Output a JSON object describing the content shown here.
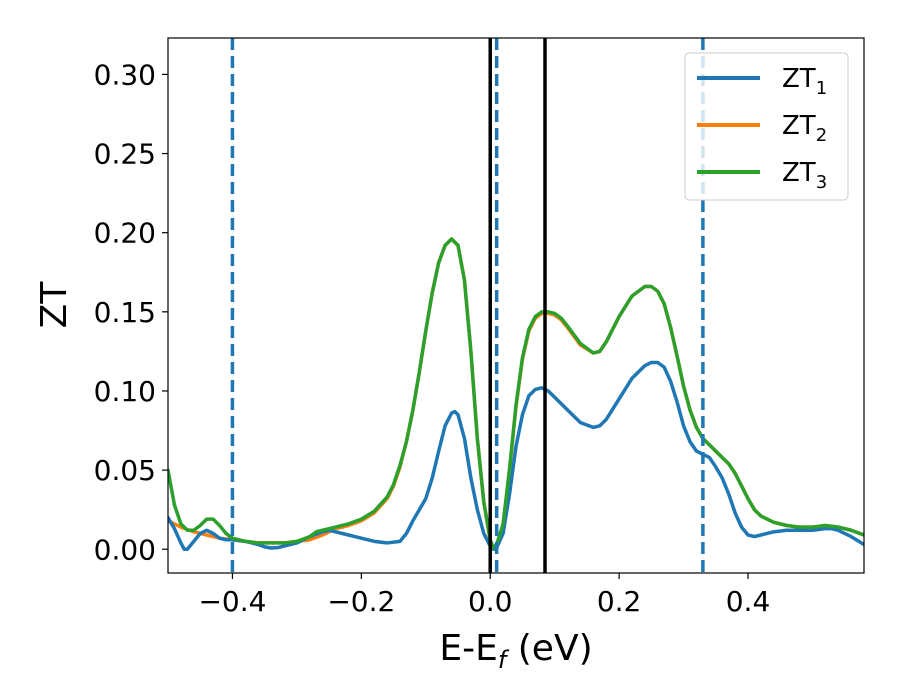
{
  "chart_data": {
    "type": "line",
    "title": "",
    "xlabel": "E-E",
    "xlabel_sub": "f",
    "xlabel_unit": " (eV)",
    "ylabel": "ZT",
    "xlim": [
      -0.5,
      0.58
    ],
    "ylim": [
      -0.015,
      0.323
    ],
    "xticks": [
      -0.4,
      -0.2,
      0.0,
      0.2,
      0.4
    ],
    "xtick_labels": [
      "−0.4",
      "−0.2",
      "0.0",
      "0.2",
      "0.4"
    ],
    "yticks": [
      0.0,
      0.05,
      0.1,
      0.15,
      0.2,
      0.25,
      0.3
    ],
    "ytick_labels": [
      "0.00",
      "0.05",
      "0.10",
      "0.15",
      "0.20",
      "0.25",
      "0.30"
    ],
    "grid": false,
    "legend_position": "top-right",
    "colors": {
      "ZT1": "#1f77b4",
      "ZT2": "#ff7f0e",
      "ZT3": "#2ca02c",
      "vline_solid": "#000000",
      "vline_dashed": "#1f77b4"
    },
    "vlines_solid": [
      0.0,
      0.085
    ],
    "vlines_dashed": [
      -0.4,
      0.01,
      0.33
    ],
    "series": [
      {
        "name": "ZT",
        "sub": "1",
        "color": "#1f77b4",
        "points": [
          [
            -0.5,
            0.02
          ],
          [
            -0.49,
            0.013
          ],
          [
            -0.48,
            0.004
          ],
          [
            -0.475,
            0.0
          ],
          [
            -0.47,
            0.0
          ],
          [
            -0.46,
            0.005
          ],
          [
            -0.45,
            0.01
          ],
          [
            -0.44,
            0.012
          ],
          [
            -0.43,
            0.01
          ],
          [
            -0.42,
            0.007
          ],
          [
            -0.41,
            0.006
          ],
          [
            -0.4,
            0.006
          ],
          [
            -0.38,
            0.005
          ],
          [
            -0.36,
            0.003
          ],
          [
            -0.35,
            0.0015
          ],
          [
            -0.34,
            0.0008
          ],
          [
            -0.33,
            0.001
          ],
          [
            -0.32,
            0.002
          ],
          [
            -0.3,
            0.004
          ],
          [
            -0.28,
            0.008
          ],
          [
            -0.26,
            0.011
          ],
          [
            -0.25,
            0.012
          ],
          [
            -0.24,
            0.011
          ],
          [
            -0.22,
            0.009
          ],
          [
            -0.2,
            0.007
          ],
          [
            -0.18,
            0.005
          ],
          [
            -0.16,
            0.004
          ],
          [
            -0.14,
            0.005
          ],
          [
            -0.13,
            0.01
          ],
          [
            -0.12,
            0.018
          ],
          [
            -0.1,
            0.032
          ],
          [
            -0.09,
            0.045
          ],
          [
            -0.08,
            0.062
          ],
          [
            -0.07,
            0.078
          ],
          [
            -0.06,
            0.086
          ],
          [
            -0.055,
            0.087
          ],
          [
            -0.05,
            0.085
          ],
          [
            -0.04,
            0.07
          ],
          [
            -0.03,
            0.045
          ],
          [
            -0.02,
            0.025
          ],
          [
            -0.01,
            0.01
          ],
          [
            0.0,
            0.002
          ],
          [
            0.005,
            0.0
          ],
          [
            0.01,
            0.001
          ],
          [
            0.02,
            0.01
          ],
          [
            0.03,
            0.035
          ],
          [
            0.04,
            0.065
          ],
          [
            0.05,
            0.085
          ],
          [
            0.06,
            0.097
          ],
          [
            0.07,
            0.101
          ],
          [
            0.08,
            0.102
          ],
          [
            0.09,
            0.1
          ],
          [
            0.1,
            0.096
          ],
          [
            0.12,
            0.088
          ],
          [
            0.14,
            0.08
          ],
          [
            0.16,
            0.077
          ],
          [
            0.17,
            0.078
          ],
          [
            0.18,
            0.082
          ],
          [
            0.2,
            0.095
          ],
          [
            0.22,
            0.108
          ],
          [
            0.24,
            0.116
          ],
          [
            0.25,
            0.118
          ],
          [
            0.26,
            0.118
          ],
          [
            0.27,
            0.115
          ],
          [
            0.28,
            0.106
          ],
          [
            0.29,
            0.093
          ],
          [
            0.3,
            0.078
          ],
          [
            0.31,
            0.068
          ],
          [
            0.32,
            0.062
          ],
          [
            0.33,
            0.06
          ],
          [
            0.34,
            0.058
          ],
          [
            0.35,
            0.052
          ],
          [
            0.36,
            0.045
          ],
          [
            0.37,
            0.035
          ],
          [
            0.38,
            0.023
          ],
          [
            0.39,
            0.014
          ],
          [
            0.4,
            0.009
          ],
          [
            0.41,
            0.008
          ],
          [
            0.42,
            0.009
          ],
          [
            0.44,
            0.011
          ],
          [
            0.46,
            0.012
          ],
          [
            0.48,
            0.012
          ],
          [
            0.5,
            0.012
          ],
          [
            0.52,
            0.013
          ],
          [
            0.53,
            0.013
          ],
          [
            0.54,
            0.012
          ],
          [
            0.56,
            0.008
          ],
          [
            0.58,
            0.003
          ]
        ]
      },
      {
        "name": "ZT",
        "sub": "2",
        "color": "#ff7f0e",
        "points": [
          [
            -0.5,
            0.018
          ],
          [
            -0.48,
            0.014
          ],
          [
            -0.46,
            0.011
          ],
          [
            -0.44,
            0.009
          ],
          [
            -0.42,
            0.007
          ],
          [
            -0.4,
            0.006
          ],
          [
            -0.38,
            0.005
          ],
          [
            -0.36,
            0.004
          ],
          [
            -0.34,
            0.004
          ],
          [
            -0.32,
            0.004
          ],
          [
            -0.3,
            0.005
          ],
          [
            -0.28,
            0.006
          ],
          [
            -0.26,
            0.009
          ],
          [
            -0.25,
            0.011
          ],
          [
            -0.24,
            0.013
          ],
          [
            -0.22,
            0.015
          ],
          [
            -0.2,
            0.018
          ],
          [
            -0.18,
            0.023
          ],
          [
            -0.16,
            0.032
          ],
          [
            -0.15,
            0.04
          ],
          [
            -0.14,
            0.052
          ],
          [
            -0.13,
            0.068
          ],
          [
            -0.12,
            0.088
          ],
          [
            -0.11,
            0.112
          ],
          [
            -0.1,
            0.138
          ],
          [
            -0.09,
            0.162
          ],
          [
            -0.08,
            0.181
          ],
          [
            -0.07,
            0.192
          ],
          [
            -0.06,
            0.196
          ],
          [
            -0.05,
            0.192
          ],
          [
            -0.04,
            0.17
          ],
          [
            -0.03,
            0.125
          ],
          [
            -0.02,
            0.07
          ],
          [
            -0.01,
            0.03
          ],
          [
            0.0,
            0.005
          ],
          [
            0.005,
            0.0
          ],
          [
            0.01,
            0.002
          ],
          [
            0.02,
            0.015
          ],
          [
            0.03,
            0.05
          ],
          [
            0.04,
            0.09
          ],
          [
            0.05,
            0.12
          ],
          [
            0.06,
            0.138
          ],
          [
            0.07,
            0.146
          ],
          [
            0.08,
            0.149
          ],
          [
            0.09,
            0.149
          ],
          [
            0.1,
            0.148
          ],
          [
            0.11,
            0.145
          ],
          [
            0.12,
            0.14
          ],
          [
            0.14,
            0.129
          ],
          [
            0.16,
            0.124
          ],
          [
            0.17,
            0.125
          ],
          [
            0.18,
            0.131
          ],
          [
            0.2,
            0.147
          ],
          [
            0.22,
            0.16
          ],
          [
            0.24,
            0.166
          ],
          [
            0.25,
            0.166
          ],
          [
            0.26,
            0.163
          ],
          [
            0.27,
            0.155
          ],
          [
            0.28,
            0.14
          ],
          [
            0.29,
            0.122
          ],
          [
            0.3,
            0.103
          ],
          [
            0.31,
            0.088
          ],
          [
            0.32,
            0.077
          ],
          [
            0.33,
            0.07
          ],
          [
            0.34,
            0.066
          ],
          [
            0.35,
            0.062
          ],
          [
            0.36,
            0.058
          ],
          [
            0.37,
            0.054
          ],
          [
            0.38,
            0.048
          ],
          [
            0.39,
            0.04
          ],
          [
            0.4,
            0.032
          ],
          [
            0.41,
            0.025
          ],
          [
            0.42,
            0.021
          ],
          [
            0.44,
            0.017
          ],
          [
            0.46,
            0.015
          ],
          [
            0.48,
            0.014
          ],
          [
            0.5,
            0.014
          ],
          [
            0.52,
            0.015
          ],
          [
            0.54,
            0.014
          ],
          [
            0.56,
            0.012
          ],
          [
            0.58,
            0.009
          ]
        ]
      },
      {
        "name": "ZT",
        "sub": "3",
        "color": "#2ca02c",
        "points": [
          [
            -0.5,
            0.05
          ],
          [
            -0.49,
            0.028
          ],
          [
            -0.48,
            0.016
          ],
          [
            -0.47,
            0.012
          ],
          [
            -0.46,
            0.012
          ],
          [
            -0.45,
            0.015
          ],
          [
            -0.44,
            0.019
          ],
          [
            -0.43,
            0.019
          ],
          [
            -0.42,
            0.015
          ],
          [
            -0.41,
            0.01
          ],
          [
            -0.4,
            0.007
          ],
          [
            -0.38,
            0.005
          ],
          [
            -0.36,
            0.004
          ],
          [
            -0.34,
            0.004
          ],
          [
            -0.32,
            0.004
          ],
          [
            -0.3,
            0.005
          ],
          [
            -0.28,
            0.008
          ],
          [
            -0.27,
            0.011
          ],
          [
            -0.26,
            0.012
          ],
          [
            -0.25,
            0.013
          ],
          [
            -0.24,
            0.014
          ],
          [
            -0.22,
            0.016
          ],
          [
            -0.2,
            0.019
          ],
          [
            -0.18,
            0.024
          ],
          [
            -0.16,
            0.033
          ],
          [
            -0.15,
            0.041
          ],
          [
            -0.14,
            0.053
          ],
          [
            -0.13,
            0.068
          ],
          [
            -0.12,
            0.088
          ],
          [
            -0.11,
            0.112
          ],
          [
            -0.1,
            0.138
          ],
          [
            -0.09,
            0.162
          ],
          [
            -0.08,
            0.181
          ],
          [
            -0.07,
            0.192
          ],
          [
            -0.06,
            0.196
          ],
          [
            -0.05,
            0.192
          ],
          [
            -0.04,
            0.17
          ],
          [
            -0.03,
            0.125
          ],
          [
            -0.02,
            0.07
          ],
          [
            -0.01,
            0.03
          ],
          [
            0.0,
            0.006
          ],
          [
            0.005,
            0.001
          ],
          [
            0.01,
            0.003
          ],
          [
            0.02,
            0.016
          ],
          [
            0.03,
            0.051
          ],
          [
            0.04,
            0.091
          ],
          [
            0.05,
            0.121
          ],
          [
            0.06,
            0.139
          ],
          [
            0.07,
            0.147
          ],
          [
            0.08,
            0.15
          ],
          [
            0.09,
            0.15
          ],
          [
            0.1,
            0.149
          ],
          [
            0.11,
            0.146
          ],
          [
            0.12,
            0.141
          ],
          [
            0.14,
            0.13
          ],
          [
            0.16,
            0.124
          ],
          [
            0.17,
            0.125
          ],
          [
            0.18,
            0.131
          ],
          [
            0.2,
            0.147
          ],
          [
            0.22,
            0.16
          ],
          [
            0.24,
            0.166
          ],
          [
            0.25,
            0.166
          ],
          [
            0.26,
            0.163
          ],
          [
            0.27,
            0.155
          ],
          [
            0.28,
            0.14
          ],
          [
            0.29,
            0.122
          ],
          [
            0.3,
            0.103
          ],
          [
            0.31,
            0.088
          ],
          [
            0.32,
            0.077
          ],
          [
            0.33,
            0.07
          ],
          [
            0.34,
            0.066
          ],
          [
            0.35,
            0.062
          ],
          [
            0.36,
            0.058
          ],
          [
            0.37,
            0.054
          ],
          [
            0.38,
            0.048
          ],
          [
            0.39,
            0.04
          ],
          [
            0.4,
            0.032
          ],
          [
            0.41,
            0.025
          ],
          [
            0.42,
            0.021
          ],
          [
            0.44,
            0.017
          ],
          [
            0.46,
            0.015
          ],
          [
            0.48,
            0.014
          ],
          [
            0.5,
            0.014
          ],
          [
            0.52,
            0.015
          ],
          [
            0.54,
            0.014
          ],
          [
            0.56,
            0.012
          ],
          [
            0.58,
            0.009
          ]
        ]
      }
    ]
  }
}
